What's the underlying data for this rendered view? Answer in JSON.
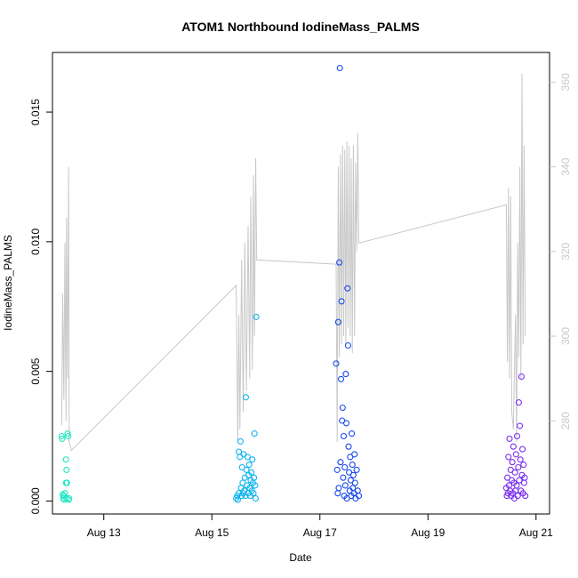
{
  "chart_data": {
    "type": "scatter",
    "title": "ATOM1 Northbound IodineMass_PALMS",
    "xlabel": "Date",
    "ylabel": "IodineMass_PALMS",
    "xlim": [
      12.05,
      21.25
    ],
    "ylim": [
      -0.0005,
      0.0173
    ],
    "y_ticks": [
      0.0,
      0.005,
      0.01,
      0.015
    ],
    "y_tick_labels": [
      "0.000",
      "0.005",
      "0.010",
      "0.015"
    ],
    "x_ticks": [
      13,
      15,
      17,
      19,
      21
    ],
    "x_tick_labels": [
      "Aug 13",
      "Aug 15",
      "Aug 17",
      "Aug 19",
      "Aug 21"
    ],
    "secondary_axis": {
      "color": "#c8c8c8",
      "ylim": [
        258,
        367
      ],
      "ticks": [
        280,
        300,
        320,
        340,
        360
      ],
      "tick_labels": [
        "280",
        "300",
        "320",
        "340",
        "360"
      ],
      "series": [
        {
          "x": 12.22,
          "y": 279
        },
        {
          "x": 12.24,
          "y": 310
        },
        {
          "x": 12.26,
          "y": 285
        },
        {
          "x": 12.28,
          "y": 322
        },
        {
          "x": 12.3,
          "y": 280
        },
        {
          "x": 12.31,
          "y": 328
        },
        {
          "x": 12.33,
          "y": 290
        },
        {
          "x": 12.35,
          "y": 340
        },
        {
          "x": 12.36,
          "y": 275
        },
        {
          "x": 12.4,
          "y": 273
        },
        {
          "x": 15.45,
          "y": 312
        },
        {
          "x": 15.48,
          "y": 275
        },
        {
          "x": 15.5,
          "y": 305
        },
        {
          "x": 15.52,
          "y": 278
        },
        {
          "x": 15.55,
          "y": 318
        },
        {
          "x": 15.58,
          "y": 282
        },
        {
          "x": 15.61,
          "y": 322
        },
        {
          "x": 15.64,
          "y": 287
        },
        {
          "x": 15.67,
          "y": 326
        },
        {
          "x": 15.7,
          "y": 290
        },
        {
          "x": 15.72,
          "y": 333
        },
        {
          "x": 15.75,
          "y": 292
        },
        {
          "x": 15.77,
          "y": 338
        },
        {
          "x": 15.79,
          "y": 300
        },
        {
          "x": 15.81,
          "y": 342
        },
        {
          "x": 15.83,
          "y": 318
        },
        {
          "x": 17.3,
          "y": 317
        },
        {
          "x": 17.32,
          "y": 275
        },
        {
          "x": 17.34,
          "y": 340
        },
        {
          "x": 17.36,
          "y": 295
        },
        {
          "x": 17.38,
          "y": 343
        },
        {
          "x": 17.4,
          "y": 298
        },
        {
          "x": 17.42,
          "y": 345
        },
        {
          "x": 17.44,
          "y": 300
        },
        {
          "x": 17.46,
          "y": 344
        },
        {
          "x": 17.48,
          "y": 298
        },
        {
          "x": 17.5,
          "y": 346
        },
        {
          "x": 17.52,
          "y": 302
        },
        {
          "x": 17.54,
          "y": 345
        },
        {
          "x": 17.56,
          "y": 300
        },
        {
          "x": 17.58,
          "y": 342
        },
        {
          "x": 17.6,
          "y": 296
        },
        {
          "x": 17.62,
          "y": 345
        },
        {
          "x": 17.64,
          "y": 300
        },
        {
          "x": 17.66,
          "y": 341
        },
        {
          "x": 17.68,
          "y": 320
        },
        {
          "x": 17.7,
          "y": 348
        },
        {
          "x": 17.72,
          "y": 322
        },
        {
          "x": 20.45,
          "y": 331
        },
        {
          "x": 20.47,
          "y": 294
        },
        {
          "x": 20.49,
          "y": 335
        },
        {
          "x": 20.51,
          "y": 290
        },
        {
          "x": 20.53,
          "y": 333
        },
        {
          "x": 20.55,
          "y": 282
        },
        {
          "x": 20.58,
          "y": 278
        },
        {
          "x": 20.62,
          "y": 305
        },
        {
          "x": 20.64,
          "y": 275
        },
        {
          "x": 20.66,
          "y": 322
        },
        {
          "x": 20.68,
          "y": 295
        },
        {
          "x": 20.7,
          "y": 340
        },
        {
          "x": 20.72,
          "y": 290
        },
        {
          "x": 20.74,
          "y": 362
        },
        {
          "x": 20.76,
          "y": 298
        },
        {
          "x": 20.78,
          "y": 345
        },
        {
          "x": 20.8,
          "y": 300
        }
      ]
    },
    "points": [
      {
        "x": 12.22,
        "y": 0.0025,
        "c": "#1fe6c2"
      },
      {
        "x": 12.23,
        "y": 0.0024,
        "c": "#1fe6c2"
      },
      {
        "x": 12.24,
        "y": 0.00025,
        "c": "#1fe6c2"
      },
      {
        "x": 12.25,
        "y": 0.0001,
        "c": "#1fe6c2"
      },
      {
        "x": 12.26,
        "y": 0.0002,
        "c": "#1fe6c2"
      },
      {
        "x": 12.27,
        "y": 5e-05,
        "c": "#1fe6c2"
      },
      {
        "x": 12.28,
        "y": 0.0003,
        "c": "#1fe6c2"
      },
      {
        "x": 12.3,
        "y": 0.0016,
        "c": "#1fe6c2"
      },
      {
        "x": 12.3,
        "y": 0.0007,
        "c": "#1fe6c2"
      },
      {
        "x": 12.31,
        "y": 0.0012,
        "c": "#1fe6c2"
      },
      {
        "x": 12.31,
        "y": 0.0001,
        "c": "#1fe6c2"
      },
      {
        "x": 12.32,
        "y": 0.0007,
        "c": "#1fe6c2"
      },
      {
        "x": 12.33,
        "y": 0.0026,
        "c": "#1fe6c2"
      },
      {
        "x": 12.34,
        "y": 0.0025,
        "c": "#1fe6c2"
      },
      {
        "x": 12.35,
        "y": 5e-05,
        "c": "#1fe6c2"
      },
      {
        "x": 12.36,
        "y": 0.0001,
        "c": "#1fe6c2"
      },
      {
        "x": 15.45,
        "y": 0.0001,
        "c": "#0fb4f0"
      },
      {
        "x": 15.47,
        "y": 0.0002,
        "c": "#0fb4f0"
      },
      {
        "x": 15.48,
        "y": 5e-05,
        "c": "#0fb4f0"
      },
      {
        "x": 15.5,
        "y": 0.0003,
        "c": "#0fb4f0"
      },
      {
        "x": 15.5,
        "y": 0.0019,
        "c": "#0fb4f0"
      },
      {
        "x": 15.52,
        "y": 0.0017,
        "c": "#0fb4f0"
      },
      {
        "x": 15.53,
        "y": 0.0023,
        "c": "#0fb4f0"
      },
      {
        "x": 15.54,
        "y": 0.0005,
        "c": "#0fb4f0"
      },
      {
        "x": 15.55,
        "y": 0.0002,
        "c": "#0fb4f0"
      },
      {
        "x": 15.56,
        "y": 0.0013,
        "c": "#0fb4f0"
      },
      {
        "x": 15.57,
        "y": 0.0007,
        "c": "#0fb4f0"
      },
      {
        "x": 15.58,
        "y": 0.0003,
        "c": "#0fb4f0"
      },
      {
        "x": 15.59,
        "y": 0.0018,
        "c": "#0fb4f0"
      },
      {
        "x": 15.6,
        "y": 0.0004,
        "c": "#0fb4f0"
      },
      {
        "x": 15.61,
        "y": 0.0009,
        "c": "#0fb4f0"
      },
      {
        "x": 15.62,
        "y": 0.0002,
        "c": "#0fb4f0"
      },
      {
        "x": 15.63,
        "y": 0.004,
        "c": "#0fb4f0"
      },
      {
        "x": 15.64,
        "y": 0.0012,
        "c": "#0fb4f0"
      },
      {
        "x": 15.65,
        "y": 0.0006,
        "c": "#0fb4f0"
      },
      {
        "x": 15.66,
        "y": 0.0017,
        "c": "#0fb4f0"
      },
      {
        "x": 15.67,
        "y": 0.0003,
        "c": "#0fb4f0"
      },
      {
        "x": 15.68,
        "y": 0.001,
        "c": "#0fb4f0"
      },
      {
        "x": 15.69,
        "y": 0.0014,
        "c": "#0fb4f0"
      },
      {
        "x": 15.7,
        "y": 0.0005,
        "c": "#0fb4f0"
      },
      {
        "x": 15.71,
        "y": 0.0002,
        "c": "#0fb4f0"
      },
      {
        "x": 15.72,
        "y": 0.0008,
        "c": "#0fb4f0"
      },
      {
        "x": 15.73,
        "y": 0.0011,
        "c": "#0fb4f0"
      },
      {
        "x": 15.74,
        "y": 0.0004,
        "c": "#0fb4f0"
      },
      {
        "x": 15.75,
        "y": 0.0016,
        "c": "#0fb4f0"
      },
      {
        "x": 15.76,
        "y": 0.0007,
        "c": "#0fb4f0"
      },
      {
        "x": 15.77,
        "y": 0.0003,
        "c": "#0fb4f0"
      },
      {
        "x": 15.78,
        "y": 0.0009,
        "c": "#0fb4f0"
      },
      {
        "x": 15.79,
        "y": 0.0026,
        "c": "#0fb4f0"
      },
      {
        "x": 15.8,
        "y": 0.0006,
        "c": "#0fb4f0"
      },
      {
        "x": 15.81,
        "y": 0.0001,
        "c": "#0fb4f0"
      },
      {
        "x": 15.82,
        "y": 0.0071,
        "c": "#0fb4f0"
      },
      {
        "x": 17.3,
        "y": 0.0053,
        "c": "#1848ee"
      },
      {
        "x": 17.32,
        "y": 0.0012,
        "c": "#1848ee"
      },
      {
        "x": 17.33,
        "y": 0.0003,
        "c": "#1848ee"
      },
      {
        "x": 17.34,
        "y": 0.0069,
        "c": "#1848ee"
      },
      {
        "x": 17.35,
        "y": 0.0005,
        "c": "#1848ee"
      },
      {
        "x": 17.36,
        "y": 0.0092,
        "c": "#1848ee"
      },
      {
        "x": 17.37,
        "y": 0.0167,
        "c": "#1848ee"
      },
      {
        "x": 17.38,
        "y": 0.0015,
        "c": "#1848ee"
      },
      {
        "x": 17.39,
        "y": 0.0047,
        "c": "#1848ee"
      },
      {
        "x": 17.4,
        "y": 0.0077,
        "c": "#1848ee"
      },
      {
        "x": 17.41,
        "y": 0.0031,
        "c": "#1848ee"
      },
      {
        "x": 17.42,
        "y": 0.0036,
        "c": "#1848ee"
      },
      {
        "x": 17.43,
        "y": 0.0009,
        "c": "#1848ee"
      },
      {
        "x": 17.44,
        "y": 0.0025,
        "c": "#1848ee"
      },
      {
        "x": 17.45,
        "y": 0.0002,
        "c": "#1848ee"
      },
      {
        "x": 17.46,
        "y": 0.0013,
        "c": "#1848ee"
      },
      {
        "x": 17.47,
        "y": 0.0006,
        "c": "#1848ee"
      },
      {
        "x": 17.48,
        "y": 0.0049,
        "c": "#1848ee"
      },
      {
        "x": 17.49,
        "y": 0.003,
        "c": "#1848ee"
      },
      {
        "x": 17.5,
        "y": 0.0001,
        "c": "#1848ee"
      },
      {
        "x": 17.51,
        "y": 0.0082,
        "c": "#1848ee"
      },
      {
        "x": 17.52,
        "y": 0.006,
        "c": "#1848ee"
      },
      {
        "x": 17.53,
        "y": 0.0021,
        "c": "#1848ee"
      },
      {
        "x": 17.54,
        "y": 0.0011,
        "c": "#1848ee"
      },
      {
        "x": 17.55,
        "y": 0.0004,
        "c": "#1848ee"
      },
      {
        "x": 17.56,
        "y": 0.0017,
        "c": "#1848ee"
      },
      {
        "x": 17.57,
        "y": 0.0008,
        "c": "#1848ee"
      },
      {
        "x": 17.58,
        "y": 0.0002,
        "c": "#1848ee"
      },
      {
        "x": 17.59,
        "y": 0.0026,
        "c": "#1848ee"
      },
      {
        "x": 17.6,
        "y": 0.0014,
        "c": "#1848ee"
      },
      {
        "x": 17.61,
        "y": 0.0005,
        "c": "#1848ee"
      },
      {
        "x": 17.62,
        "y": 0.001,
        "c": "#1848ee"
      },
      {
        "x": 17.63,
        "y": 0.0003,
        "c": "#1848ee"
      },
      {
        "x": 17.64,
        "y": 0.0018,
        "c": "#1848ee"
      },
      {
        "x": 17.65,
        "y": 0.0007,
        "c": "#1848ee"
      },
      {
        "x": 17.66,
        "y": 0.0001,
        "c": "#1848ee"
      },
      {
        "x": 17.68,
        "y": 0.0012,
        "c": "#1848ee"
      },
      {
        "x": 17.7,
        "y": 0.0004,
        "c": "#1848ee"
      },
      {
        "x": 17.72,
        "y": 0.0002,
        "c": "#1848ee"
      },
      {
        "x": 20.45,
        "y": 0.0005,
        "c": "#7a2ef0"
      },
      {
        "x": 20.46,
        "y": 0.0002,
        "c": "#7a2ef0"
      },
      {
        "x": 20.47,
        "y": 0.0009,
        "c": "#7a2ef0"
      },
      {
        "x": 20.48,
        "y": 0.0003,
        "c": "#7a2ef0"
      },
      {
        "x": 20.49,
        "y": 0.0017,
        "c": "#7a2ef0"
      },
      {
        "x": 20.5,
        "y": 0.0006,
        "c": "#7a2ef0"
      },
      {
        "x": 20.51,
        "y": 0.0024,
        "c": "#7a2ef0"
      },
      {
        "x": 20.52,
        "y": 0.0004,
        "c": "#7a2ef0"
      },
      {
        "x": 20.53,
        "y": 0.0012,
        "c": "#7a2ef0"
      },
      {
        "x": 20.54,
        "y": 0.0002,
        "c": "#7a2ef0"
      },
      {
        "x": 20.55,
        "y": 0.0008,
        "c": "#7a2ef0"
      },
      {
        "x": 20.56,
        "y": 0.0015,
        "c": "#7a2ef0"
      },
      {
        "x": 20.57,
        "y": 0.0003,
        "c": "#7a2ef0"
      },
      {
        "x": 20.58,
        "y": 0.0021,
        "c": "#7a2ef0"
      },
      {
        "x": 20.59,
        "y": 0.0007,
        "c": "#7a2ef0"
      },
      {
        "x": 20.6,
        "y": 0.0001,
        "c": "#7a2ef0"
      },
      {
        "x": 20.61,
        "y": 0.0011,
        "c": "#7a2ef0"
      },
      {
        "x": 20.62,
        "y": 0.0004,
        "c": "#7a2ef0"
      },
      {
        "x": 20.63,
        "y": 0.0018,
        "c": "#7a2ef0"
      },
      {
        "x": 20.64,
        "y": 0.0006,
        "c": "#7a2ef0"
      },
      {
        "x": 20.65,
        "y": 0.0025,
        "c": "#7a2ef0"
      },
      {
        "x": 20.66,
        "y": 0.0002,
        "c": "#7a2ef0"
      },
      {
        "x": 20.67,
        "y": 0.0013,
        "c": "#7a2ef0"
      },
      {
        "x": 20.68,
        "y": 0.0038,
        "c": "#7a2ef0"
      },
      {
        "x": 20.69,
        "y": 0.0008,
        "c": "#7a2ef0"
      },
      {
        "x": 20.7,
        "y": 0.0029,
        "c": "#7a2ef0"
      },
      {
        "x": 20.71,
        "y": 0.0016,
        "c": "#7a2ef0"
      },
      {
        "x": 20.72,
        "y": 0.0004,
        "c": "#7a2ef0"
      },
      {
        "x": 20.73,
        "y": 0.0048,
        "c": "#7a2ef0"
      },
      {
        "x": 20.74,
        "y": 0.001,
        "c": "#7a2ef0"
      },
      {
        "x": 20.75,
        "y": 0.002,
        "c": "#7a2ef0"
      },
      {
        "x": 20.76,
        "y": 0.0003,
        "c": "#7a2ef0"
      },
      {
        "x": 20.77,
        "y": 0.0014,
        "c": "#7a2ef0"
      },
      {
        "x": 20.78,
        "y": 0.0007,
        "c": "#7a2ef0"
      },
      {
        "x": 20.79,
        "y": 0.0009,
        "c": "#7a2ef0"
      },
      {
        "x": 20.8,
        "y": 0.0002,
        "c": "#7a2ef0"
      }
    ]
  }
}
